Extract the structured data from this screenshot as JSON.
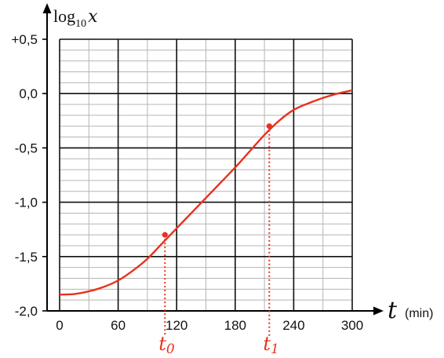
{
  "chart_data": {
    "type": "line",
    "title": "",
    "ylabel": {
      "base": "log",
      "subscript": "10",
      "variable": "x"
    },
    "xlabel": {
      "variable": "t",
      "unit": "(min)"
    },
    "xlim": [
      0,
      300
    ],
    "ylim": [
      -2.0,
      0.5
    ],
    "x_ticks": [
      "0",
      "60",
      "120",
      "180",
      "240",
      "300"
    ],
    "x_tick_values": [
      0,
      60,
      120,
      180,
      240,
      300
    ],
    "y_ticks": [
      "+0,5",
      "0,0",
      "-0,5",
      "-1,0",
      "-1,5",
      "-2,0"
    ],
    "y_tick_values": [
      0.5,
      0.0,
      -0.5,
      -1.0,
      -1.5,
      -2.0
    ],
    "grid": {
      "major_x_step": 60,
      "minor_x_step": 30,
      "major_y_step": 0.5,
      "minor_y_step": 0.1
    },
    "series": [
      {
        "color": "#e8321e",
        "x": [
          0,
          15,
          30,
          45,
          60,
          75,
          90,
          105,
          120,
          135,
          150,
          165,
          180,
          195,
          210,
          225,
          240,
          255,
          270,
          285,
          300
        ],
        "y": [
          -1.85,
          -1.845,
          -1.82,
          -1.78,
          -1.72,
          -1.63,
          -1.52,
          -1.38,
          -1.24,
          -1.1,
          -0.96,
          -0.82,
          -0.68,
          -0.53,
          -0.38,
          -0.25,
          -0.15,
          -0.09,
          -0.04,
          0.0,
          0.03
        ]
      }
    ],
    "markers": [
      {
        "label": "t",
        "subscript": "0",
        "x": 108,
        "y": -1.3,
        "color": "#e8321e"
      },
      {
        "label": "t",
        "subscript": "1",
        "x": 215,
        "y": -0.3,
        "color": "#e8321e"
      }
    ]
  }
}
